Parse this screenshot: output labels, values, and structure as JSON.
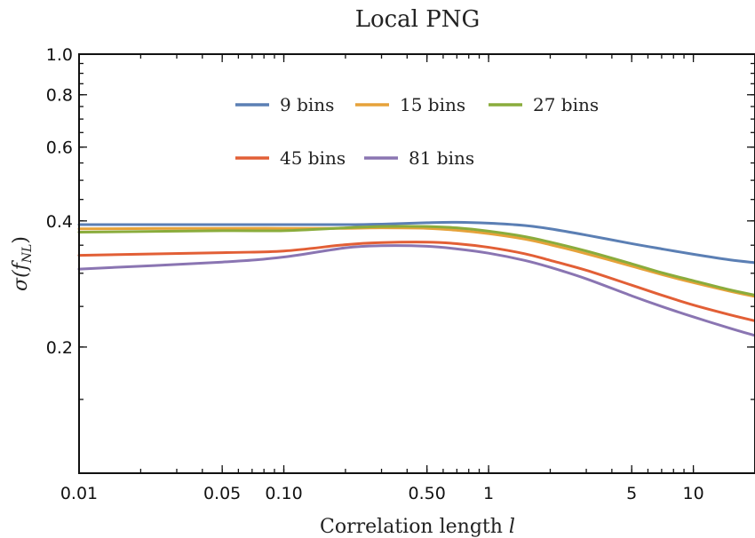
{
  "chart_data": {
    "type": "line",
    "title": "Local PNG",
    "xlabel": "Correlation length",
    "xlabel_var": "l",
    "ylabel": "σ(f",
    "ylabel_sub": "NL",
    "ylabel_close": ")",
    "xscale": "log",
    "yscale": "log",
    "xlim": [
      0.01,
      20
    ],
    "ylim": [
      0.1,
      1.0
    ],
    "grid": false,
    "legend_position": "top-center",
    "x_ticks": [
      {
        "value": 0.01,
        "label": "0.01"
      },
      {
        "value": 0.05,
        "label": "0.05"
      },
      {
        "value": 0.1,
        "label": "0.10"
      },
      {
        "value": 0.5,
        "label": "0.50"
      },
      {
        "value": 1,
        "label": "1"
      },
      {
        "value": 5,
        "label": "5"
      },
      {
        "value": 10,
        "label": "10"
      }
    ],
    "y_ticks": [
      {
        "value": 0.2,
        "label": "0.2"
      },
      {
        "value": 0.4,
        "label": "0.4"
      },
      {
        "value": 0.6,
        "label": "0.6"
      },
      {
        "value": 0.8,
        "label": "0.8"
      },
      {
        "value": 1.0,
        "label": "1.0"
      }
    ],
    "series": [
      {
        "name": "9 bins",
        "color": "#5b7fb4",
        "x": [
          0.01,
          0.05,
          0.1,
          0.2,
          0.3,
          0.5,
          0.7,
          1,
          1.5,
          2,
          3,
          5,
          7,
          10,
          15,
          20
        ],
        "y": [
          0.392,
          0.392,
          0.392,
          0.392,
          0.393,
          0.396,
          0.397,
          0.395,
          0.39,
          0.383,
          0.37,
          0.353,
          0.343,
          0.333,
          0.323,
          0.318
        ]
      },
      {
        "name": "15 bins",
        "color": "#e6a23a",
        "x": [
          0.01,
          0.05,
          0.1,
          0.2,
          0.3,
          0.5,
          0.7,
          1,
          1.5,
          2,
          3,
          5,
          7,
          10,
          15,
          20
        ],
        "y": [
          0.383,
          0.384,
          0.384,
          0.384,
          0.385,
          0.384,
          0.38,
          0.373,
          0.362,
          0.351,
          0.334,
          0.312,
          0.298,
          0.285,
          0.272,
          0.264
        ]
      },
      {
        "name": "27 bins",
        "color": "#8aac3c",
        "x": [
          0.01,
          0.05,
          0.1,
          0.2,
          0.3,
          0.5,
          0.7,
          1,
          1.5,
          2,
          3,
          5,
          7,
          10,
          15,
          20
        ],
        "y": [
          0.376,
          0.379,
          0.379,
          0.385,
          0.388,
          0.388,
          0.385,
          0.378,
          0.367,
          0.356,
          0.339,
          0.316,
          0.301,
          0.288,
          0.274,
          0.266
        ]
      },
      {
        "name": "45 bins",
        "color": "#e25f36",
        "x": [
          0.01,
          0.05,
          0.1,
          0.2,
          0.3,
          0.5,
          0.7,
          1,
          1.5,
          2,
          3,
          5,
          7,
          10,
          15,
          20
        ],
        "y": [
          0.331,
          0.336,
          0.339,
          0.351,
          0.355,
          0.356,
          0.353,
          0.346,
          0.334,
          0.322,
          0.305,
          0.281,
          0.266,
          0.252,
          0.239,
          0.231
        ]
      },
      {
        "name": "81 bins",
        "color": "#8a75b2",
        "x": [
          0.01,
          0.05,
          0.1,
          0.2,
          0.3,
          0.5,
          0.7,
          1,
          1.5,
          2,
          3,
          5,
          7,
          10,
          15,
          20
        ],
        "y": [
          0.307,
          0.319,
          0.328,
          0.345,
          0.349,
          0.348,
          0.343,
          0.335,
          0.322,
          0.31,
          0.291,
          0.265,
          0.25,
          0.236,
          0.222,
          0.213
        ]
      }
    ]
  }
}
